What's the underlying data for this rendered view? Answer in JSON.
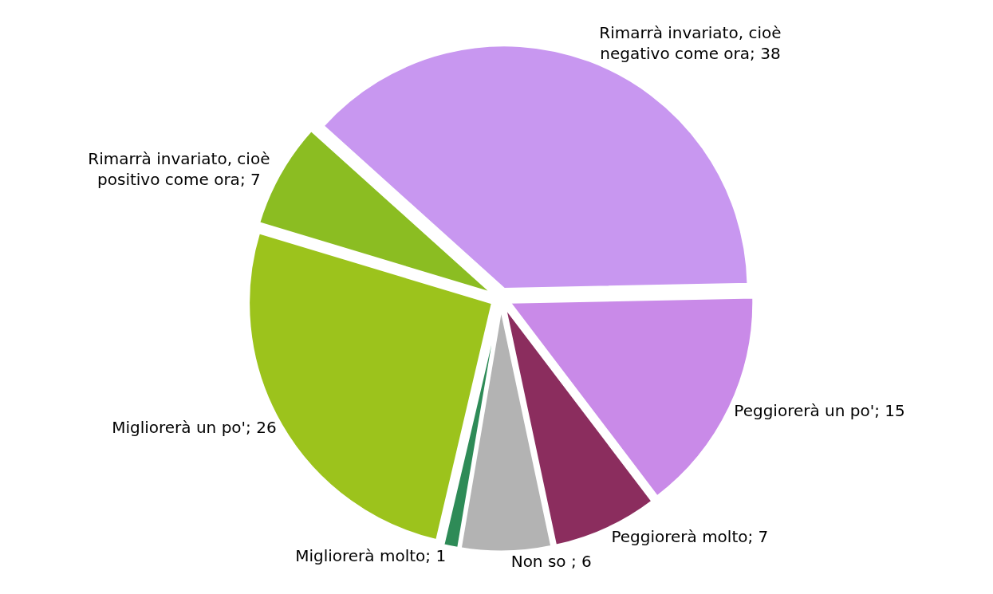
{
  "chart_data": {
    "type": "pie",
    "categories": [
      "Rimarrà invariato, cioè negativo come ora; 38",
      "Peggiorerà un po'; 15",
      "Peggiorerà molto; 7",
      "Non so ; 6",
      "Migliorerà molto; 1",
      "Migliorerà un po'; 26",
      "Rimarrà invariato, cioè positivo come ora; 7"
    ],
    "values": [
      38,
      15,
      7,
      6,
      1,
      26,
      7
    ],
    "colors": [
      "#c897f0",
      "#c98ae8",
      "#8b2d5e",
      "#b3b3b3",
      "#2e8b57",
      "#9cc31c",
      "#8bbd22"
    ],
    "legend": false
  }
}
